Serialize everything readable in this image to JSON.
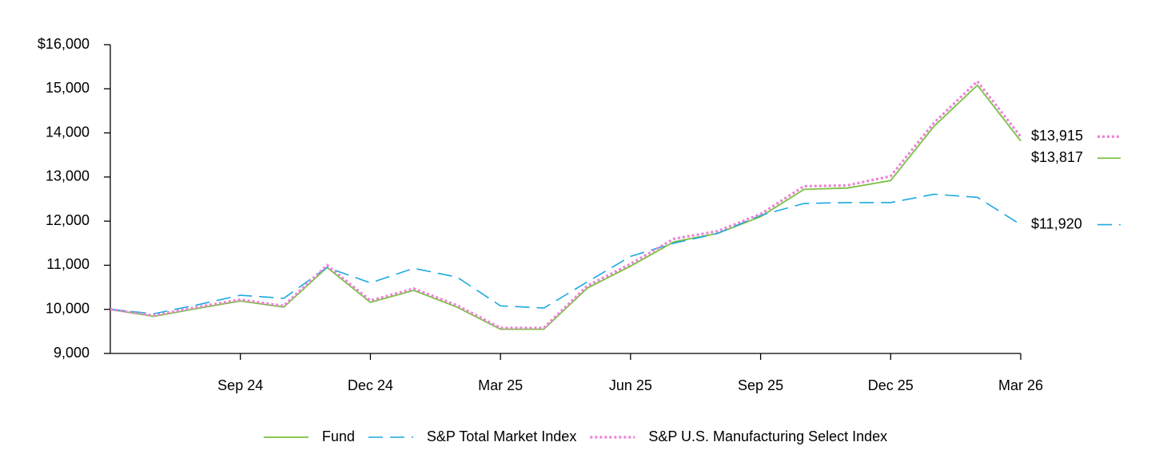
{
  "chart_data": {
    "type": "line",
    "categories": [
      null,
      null,
      null,
      "Sep 24",
      null,
      null,
      "Dec 24",
      null,
      null,
      "Mar 25",
      null,
      null,
      "Jun 25",
      null,
      null,
      "Sep 25",
      null,
      null,
      "Dec 25",
      null,
      null,
      "Mar 26"
    ],
    "series": [
      {
        "name": "Fund",
        "color": "#7ac143",
        "dash": "solid",
        "values": [
          10000,
          9840,
          10020,
          10190,
          10050,
          10950,
          10160,
          10430,
          10050,
          9550,
          9550,
          10480,
          10980,
          11530,
          11720,
          12100,
          12720,
          12750,
          12920,
          14150,
          15080,
          13817
        ],
        "value_labels": [
          null,
          null,
          null,
          null,
          null,
          null,
          null,
          null,
          null,
          null,
          null,
          null,
          null,
          null,
          null,
          null,
          null,
          null,
          null,
          null,
          null,
          "$13,817"
        ]
      },
      {
        "name": "S&P Total Market Index",
        "color": "#1ba9e0",
        "dash": "dashed",
        "values": [
          10000,
          9900,
          10100,
          10320,
          10250,
          10950,
          10600,
          10930,
          10730,
          10080,
          10030,
          10620,
          11200,
          11500,
          11720,
          12130,
          12400,
          12420,
          12420,
          12610,
          12540,
          11920
        ],
        "value_labels": [
          null,
          null,
          null,
          null,
          null,
          null,
          null,
          null,
          null,
          null,
          null,
          null,
          null,
          null,
          null,
          null,
          null,
          null,
          null,
          null,
          null,
          "$11,920"
        ]
      },
      {
        "name": "S&P U.S. Manufacturing Select Index",
        "color": "#ee82d6",
        "dash": "dotted",
        "values": [
          10000,
          9860,
          10050,
          10220,
          10080,
          11000,
          10200,
          10470,
          10090,
          9580,
          9580,
          10530,
          11030,
          11600,
          11770,
          12160,
          12790,
          12810,
          13020,
          14230,
          15170,
          13915
        ],
        "value_labels": [
          null,
          null,
          null,
          null,
          null,
          null,
          null,
          null,
          null,
          null,
          null,
          null,
          null,
          null,
          null,
          null,
          null,
          null,
          null,
          null,
          null,
          "$13,915"
        ]
      }
    ],
    "ylim": [
      9000,
      16000
    ],
    "yticks": [
      {
        "value": 9000,
        "label": "9,000"
      },
      {
        "value": 10000,
        "label": "10,000"
      },
      {
        "value": 11000,
        "label": "11,000"
      },
      {
        "value": 12000,
        "label": "12,000"
      },
      {
        "value": 13000,
        "label": "13,000"
      },
      {
        "value": 14000,
        "label": "14,000"
      },
      {
        "value": 15000,
        "label": "15,000"
      },
      {
        "value": 16000,
        "label": "$16,000"
      }
    ],
    "grid": false,
    "legend": "bottom"
  }
}
